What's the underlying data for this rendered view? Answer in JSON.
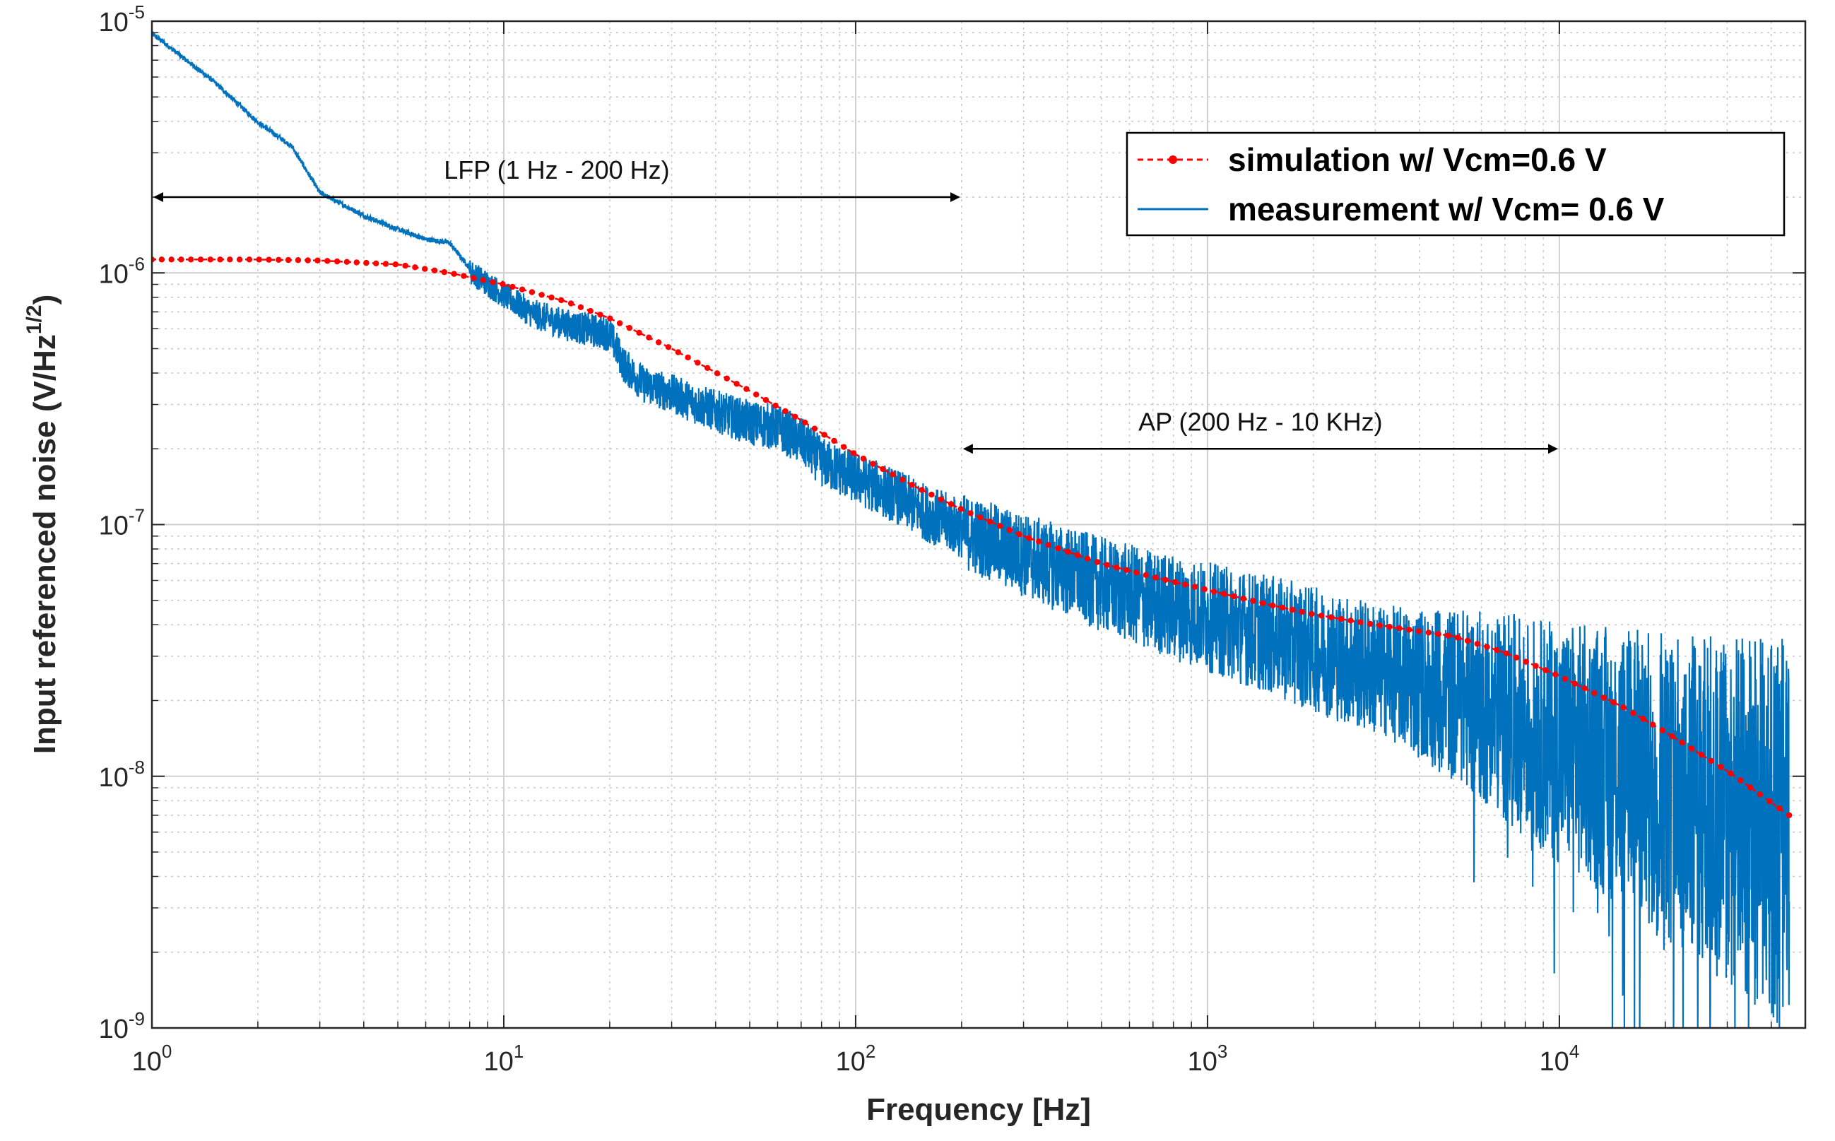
{
  "chart_data": {
    "type": "line",
    "title": "",
    "xlabel": "Frequency [Hz]",
    "ylabel": "Input referenced noise (V/Hz",
    "ylabel_sup": "1/2",
    "ylabel_close": ")",
    "xscale": "log",
    "yscale": "log",
    "xlim": [
      1,
      50000
    ],
    "ylim": [
      1e-09,
      1e-05
    ],
    "grid": true,
    "minor_grid": true,
    "legend_position": "top-right",
    "x_ticks": [
      {
        "value": 1,
        "base": "10",
        "exp": "0"
      },
      {
        "value": 10,
        "base": "10",
        "exp": "1"
      },
      {
        "value": 100,
        "base": "10",
        "exp": "2"
      },
      {
        "value": 1000,
        "base": "10",
        "exp": "3"
      },
      {
        "value": 10000,
        "base": "10",
        "exp": "4"
      }
    ],
    "y_ticks": [
      {
        "value": 1e-09,
        "base": "10",
        "exp": "-9"
      },
      {
        "value": 1e-08,
        "base": "10",
        "exp": "-8"
      },
      {
        "value": 1e-07,
        "base": "10",
        "exp": "-7"
      },
      {
        "value": 1e-06,
        "base": "10",
        "exp": "-6"
      },
      {
        "value": 1e-05,
        "base": "10",
        "exp": "-5"
      }
    ],
    "series": [
      {
        "name": "simulation w/ Vcm=0.6 V",
        "color": "#ff0000",
        "style": "dotted-marker",
        "points": [
          [
            1,
            1.13e-06
          ],
          [
            2,
            1.13e-06
          ],
          [
            3,
            1.12e-06
          ],
          [
            5,
            1.08e-06
          ],
          [
            7,
            1e-06
          ],
          [
            10,
            9e-07
          ],
          [
            15,
            7.7e-07
          ],
          [
            20,
            6.6e-07
          ],
          [
            30,
            5e-07
          ],
          [
            50,
            3.4e-07
          ],
          [
            70,
            2.6e-07
          ],
          [
            100,
            1.9e-07
          ],
          [
            150,
            1.4e-07
          ],
          [
            200,
            1.15e-07
          ],
          [
            300,
            9e-08
          ],
          [
            500,
            7e-08
          ],
          [
            700,
            6.2e-08
          ],
          [
            1000,
            5.5e-08
          ],
          [
            1500,
            4.8e-08
          ],
          [
            2000,
            4.4e-08
          ],
          [
            3000,
            4e-08
          ],
          [
            5000,
            3.6e-08
          ],
          [
            7000,
            3.1e-08
          ],
          [
            10000,
            2.5e-08
          ],
          [
            15000,
            1.9e-08
          ],
          [
            20000,
            1.5e-08
          ],
          [
            30000,
            1.05e-08
          ],
          [
            45000,
            7e-09
          ]
        ]
      },
      {
        "name": "measurement w/ Vcm= 0.6 V",
        "color": "#0072bd",
        "style": "line",
        "points": [
          [
            1,
            9e-06
          ],
          [
            1.5,
            5.8e-06
          ],
          [
            2,
            4e-06
          ],
          [
            2.5,
            3.2e-06
          ],
          [
            3,
            2.1e-06
          ],
          [
            4,
            1.7e-06
          ],
          [
            5,
            1.5e-06
          ],
          [
            6,
            1.37e-06
          ],
          [
            7,
            1.33e-06
          ],
          [
            8,
            1.05e-06
          ],
          [
            10,
            8.5e-07
          ],
          [
            12,
            7.2e-07
          ],
          [
            15,
            6.5e-07
          ],
          [
            20,
            6e-07
          ],
          [
            22,
            4.5e-07
          ],
          [
            25,
            3.8e-07
          ],
          [
            30,
            3.5e-07
          ],
          [
            35,
            3.2e-07
          ],
          [
            40,
            3e-07
          ],
          [
            50,
            2.7e-07
          ],
          [
            60,
            2.6e-07
          ],
          [
            70,
            2.3e-07
          ],
          [
            80,
            1.9e-07
          ],
          [
            100,
            1.65e-07
          ],
          [
            130,
            1.4e-07
          ],
          [
            160,
            1.2e-07
          ],
          [
            200,
            1.05e-07
          ],
          [
            300,
            8.5e-08
          ],
          [
            500,
            6.6e-08
          ],
          [
            700,
            5.7e-08
          ],
          [
            1000,
            5e-08
          ],
          [
            1500,
            4.3e-08
          ],
          [
            2000,
            3.8e-08
          ],
          [
            3000,
            3.2e-08
          ],
          [
            5000,
            2.7e-08
          ],
          [
            7000,
            2.3e-08
          ],
          [
            10000,
            1.9e-08
          ],
          [
            15000,
            1.6e-08
          ],
          [
            20000,
            1.4e-08
          ],
          [
            30000,
            1.2e-08
          ],
          [
            45000,
            1e-08
          ]
        ]
      }
    ],
    "annotations": [
      {
        "text": "LFP (1 Hz - 200 Hz)",
        "x_from": 1,
        "x_to": 200,
        "y": 2e-06
      },
      {
        "text": "AP (200 Hz - 10 KHz)",
        "x_from": 200,
        "x_to": 10000,
        "y": 2e-07
      }
    ]
  }
}
